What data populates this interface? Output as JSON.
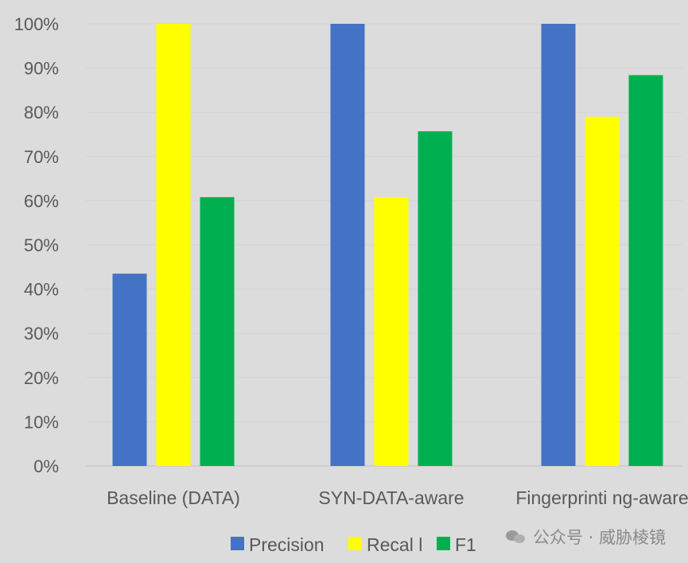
{
  "chart_data": {
    "type": "bar",
    "categories": [
      "Baseline (DATA)",
      "SYN-DATA-aware",
      "Fingerprinti ng-aware"
    ],
    "series": [
      {
        "name": "Precision",
        "color": "#4472c4",
        "values": [
          43.5,
          100,
          100
        ]
      },
      {
        "name": "Recal l",
        "color": "#ffff00",
        "values": [
          100,
          60.8,
          79
        ]
      },
      {
        "name": "F1",
        "color": "#00b050",
        "values": [
          60.8,
          75.7,
          88.4
        ]
      }
    ],
    "ylim": [
      0,
      100
    ],
    "yticks": [
      "0%",
      "10%",
      "20%",
      "30%",
      "40%",
      "50%",
      "60%",
      "70%",
      "80%",
      "90%",
      "100%"
    ],
    "grid": true,
    "legend_position": "bottom"
  },
  "watermark": {
    "icon": "wechat-icon",
    "text": "公众号 · 威胁棱镜"
  }
}
